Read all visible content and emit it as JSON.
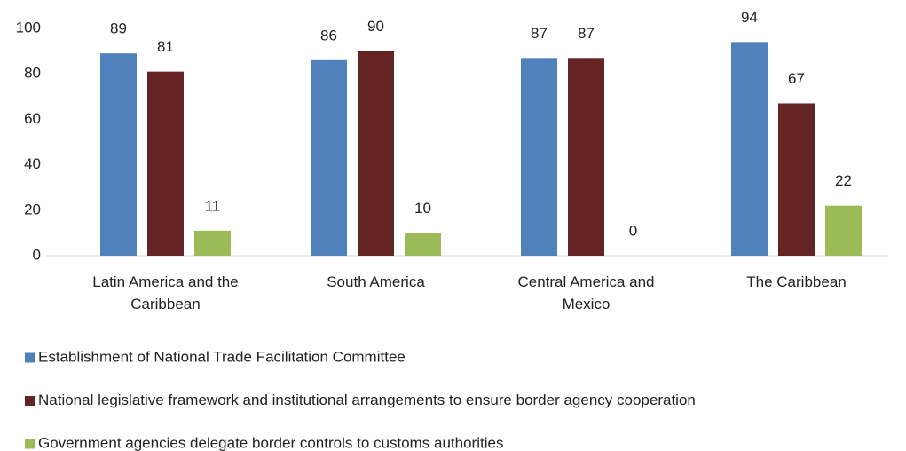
{
  "chart_data": {
    "type": "bar",
    "categories": [
      "Latin America and the Caribbean",
      "South America",
      "Central America and Mexico",
      "The Caribbean"
    ],
    "series": [
      {
        "name": "Establishment of National Trade Facilitation Committee",
        "color": "#4f81bd",
        "values": [
          89,
          86,
          87,
          94
        ]
      },
      {
        "name": "National legislative framework and institutional arrangements to ensure border agency cooperation",
        "color": "#632423",
        "values": [
          81,
          90,
          87,
          67
        ]
      },
      {
        "name": "Government agencies delegate border controls to customs authorities",
        "color": "#9bbb59",
        "values": [
          11,
          10,
          0,
          22
        ]
      }
    ],
    "ylim": [
      0,
      100
    ],
    "yticks": [
      0,
      20,
      40,
      60,
      80,
      100
    ],
    "grid": false,
    "legend": "bottom"
  }
}
